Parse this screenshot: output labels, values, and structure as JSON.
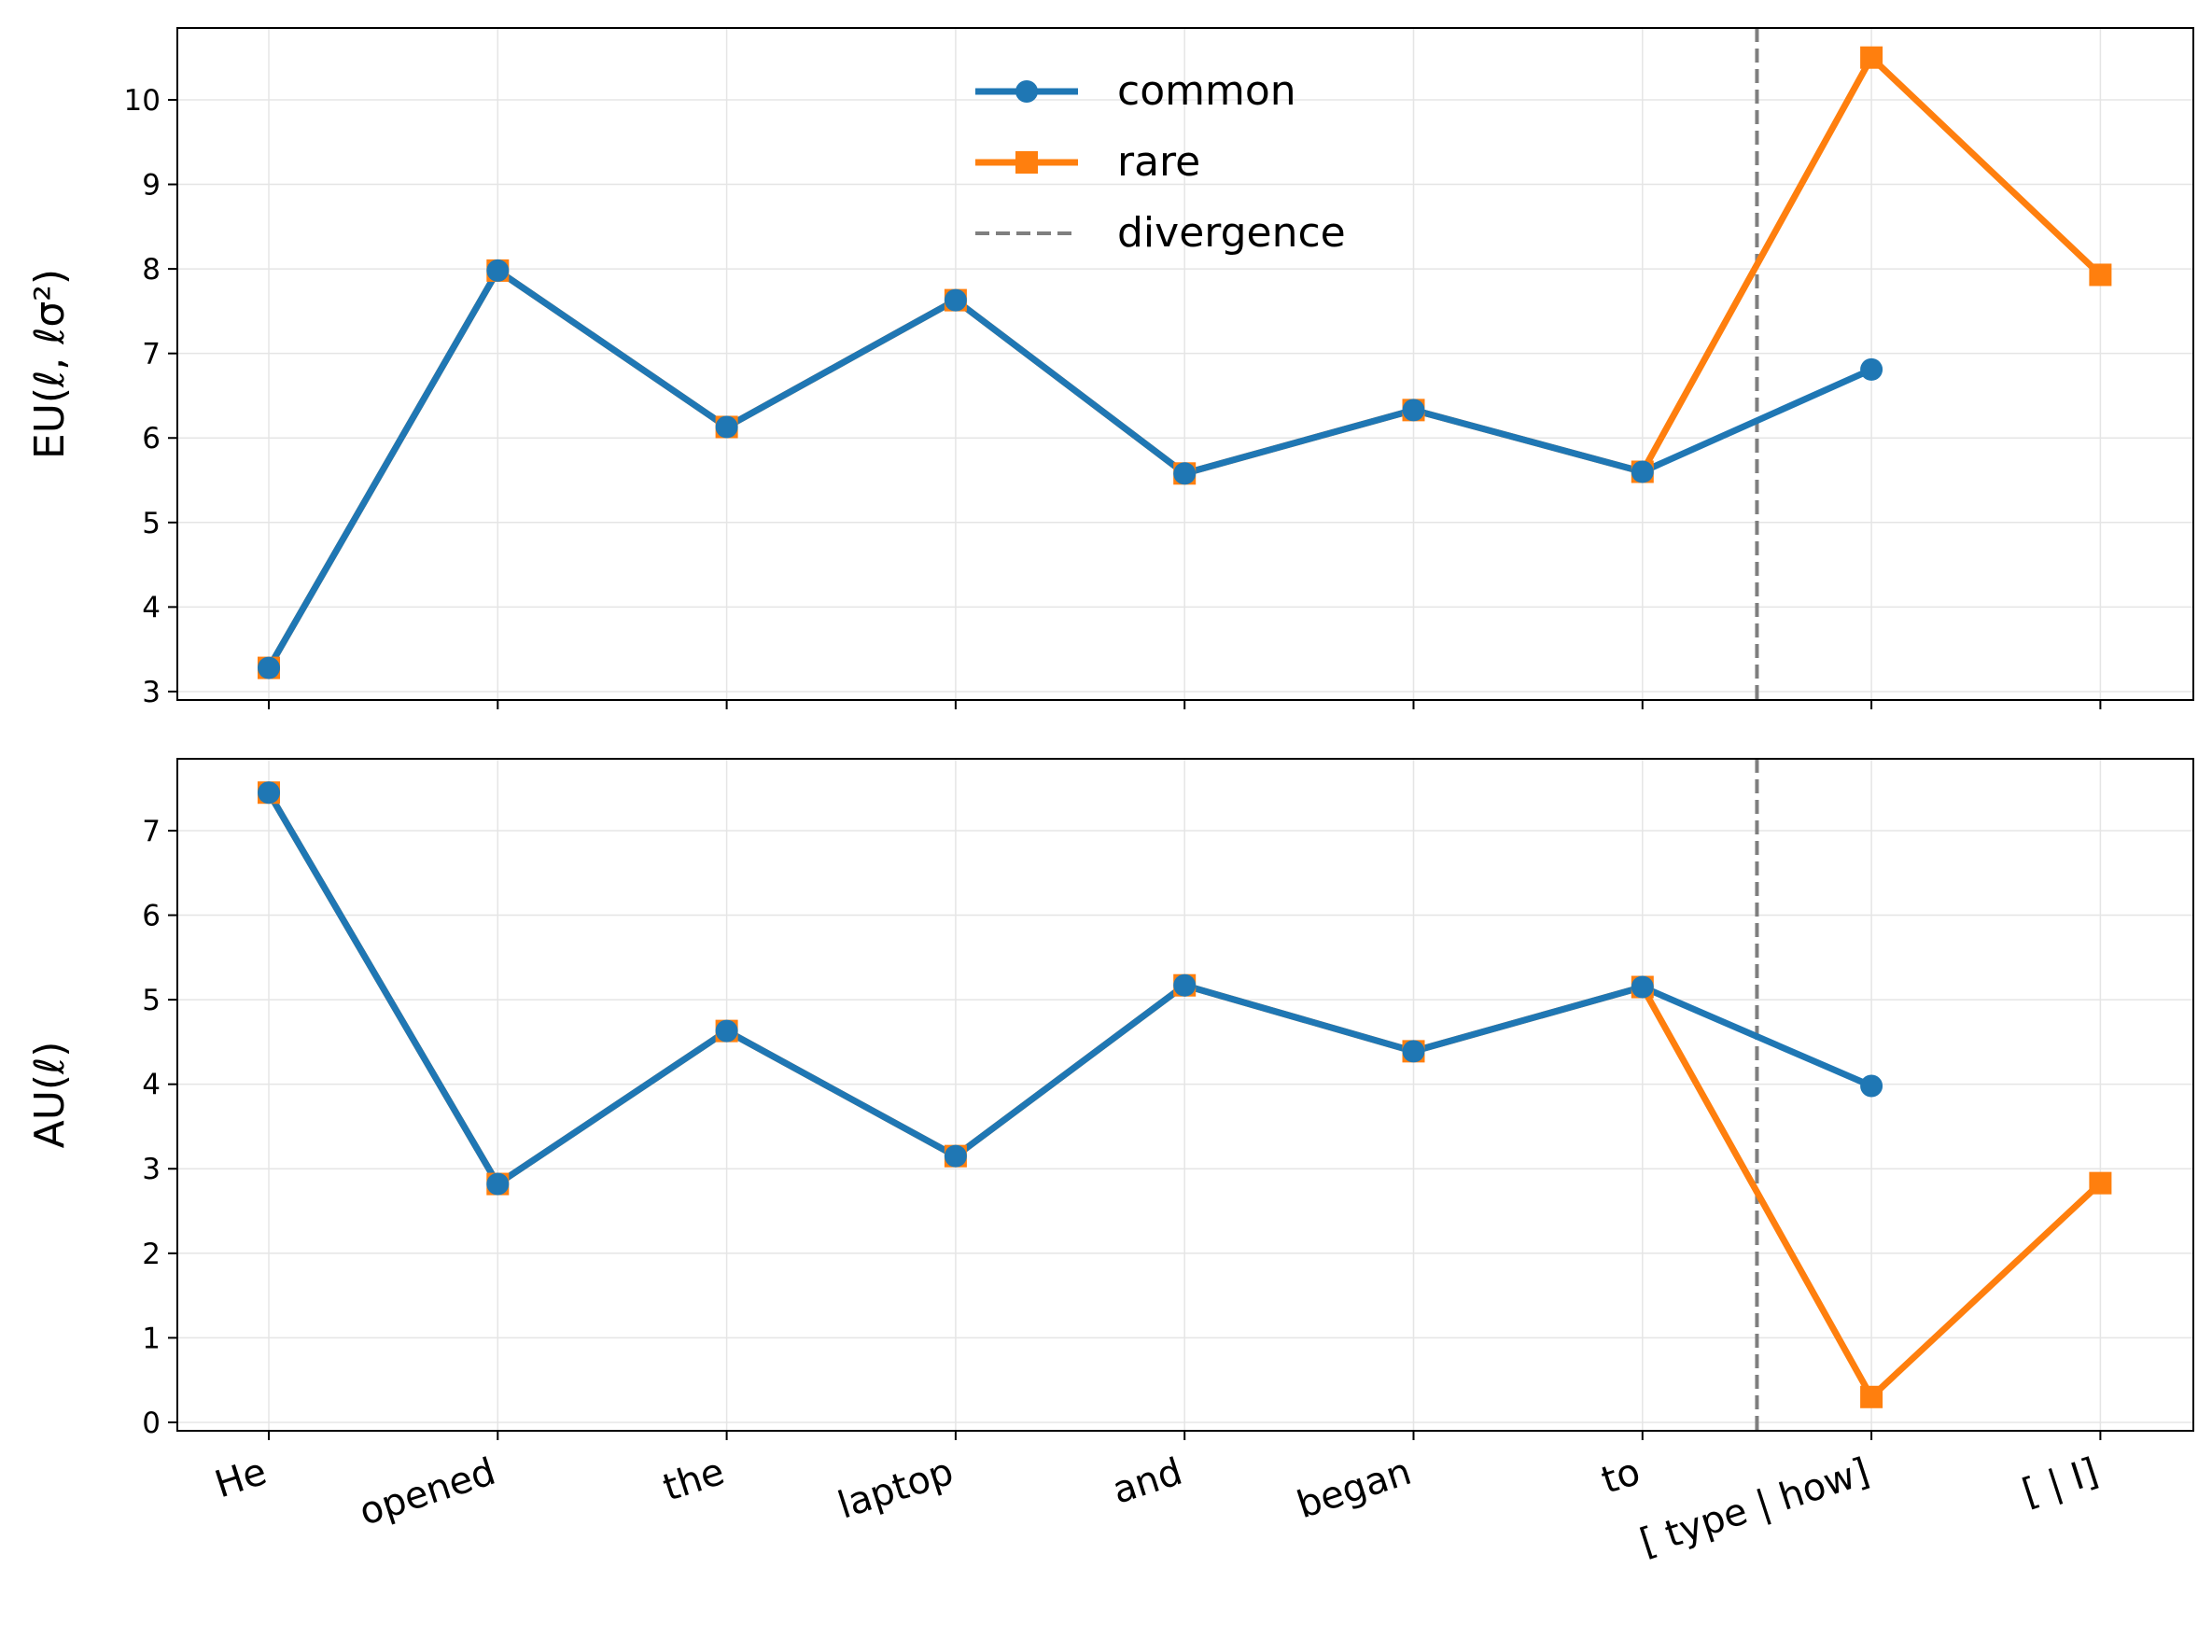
{
  "chart_data": [
    {
      "type": "line",
      "ylabel": "EU(ℓ, ℓσ²)",
      "ylim": [
        2.9,
        10.85
      ],
      "yticks": [
        3,
        4,
        5,
        6,
        7,
        8,
        9,
        10
      ],
      "x_positions": [
        0,
        1,
        2,
        3,
        4,
        5,
        6,
        7,
        8
      ],
      "series": [
        {
          "name": "common",
          "color": "#1f77b4",
          "marker": "circle",
          "values": [
            3.28,
            7.98,
            6.13,
            7.63,
            5.58,
            6.33,
            5.6,
            6.81
          ]
        },
        {
          "name": "rare",
          "color": "#ff7f0e",
          "marker": "square",
          "values": [
            3.28,
            7.98,
            6.13,
            7.63,
            5.58,
            6.33,
            5.6,
            10.5,
            7.93
          ]
        }
      ],
      "divergence_x": 6.5,
      "grid": true,
      "legend_position": "top-center"
    },
    {
      "type": "line",
      "ylabel": "AU(ℓ)",
      "ylim": [
        -0.1,
        7.85
      ],
      "yticks": [
        0,
        1,
        2,
        3,
        4,
        5,
        6,
        7
      ],
      "series": [
        {
          "name": "common",
          "color": "#1f77b4",
          "marker": "circle",
          "values": [
            7.45,
            2.82,
            4.63,
            3.15,
            5.17,
            4.39,
            5.15,
            3.98
          ]
        },
        {
          "name": "rare",
          "color": "#ff7f0e",
          "marker": "square",
          "values": [
            7.45,
            2.82,
            4.63,
            3.15,
            5.17,
            4.39,
            5.15,
            0.3,
            2.83
          ]
        }
      ],
      "divergence_x": 6.5,
      "grid": true
    }
  ],
  "x_tick_labels": [
    [
      "He"
    ],
    [
      "opened"
    ],
    [
      "the"
    ],
    [
      "laptop"
    ],
    [
      "and"
    ],
    [
      "began"
    ],
    [
      "to"
    ],
    [
      "[ type |  how]",
      ""
    ],
    [
      "[ | I]"
    ]
  ],
  "legend": [
    {
      "label": "common",
      "color": "#1f77b4",
      "style": "line-circle"
    },
    {
      "label": "rare",
      "color": "#ff7f0e",
      "style": "line-square"
    },
    {
      "label": "divergence",
      "color": "#7f7f7f",
      "style": "dashed"
    }
  ],
  "colors": {
    "common": "#1f77b4",
    "rare": "#ff7f0e",
    "divergence": "#7f7f7f",
    "grid": "#e5e5e5"
  }
}
